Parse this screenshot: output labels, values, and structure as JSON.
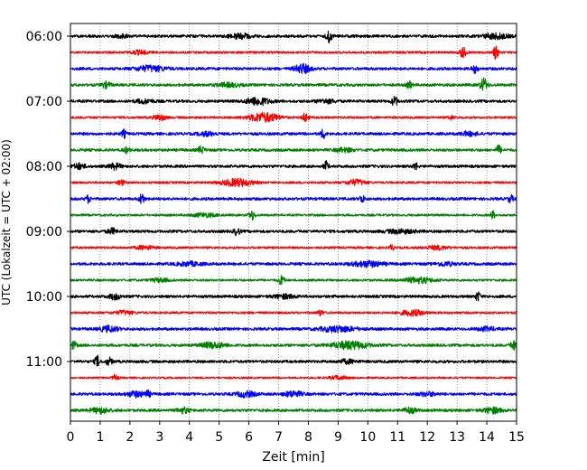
{
  "chart_data": {
    "type": "line",
    "title": "",
    "xlabel": "Zeit  [min]",
    "ylabel": "UTC (Lokalzeit = UTC + 02:00)",
    "xlim": [
      0,
      15
    ],
    "x_ticks": [
      "0",
      "1",
      "2",
      "3",
      "4",
      "5",
      "6",
      "7",
      "8",
      "9",
      "10",
      "11",
      "12",
      "13",
      "14",
      "15"
    ],
    "y_ticks": [
      "06:00",
      "07:00",
      "08:00",
      "09:00",
      "10:00",
      "11:00"
    ],
    "grid": "vertical dotted lines at each minute",
    "trace_interval_min": 15,
    "trace_colors": [
      "#000000",
      "#ff0000",
      "#0000ff",
      "#008000"
    ],
    "traces": [
      {
        "start": "06:00",
        "color": "#000000",
        "base_amp": 1.5,
        "events": [
          [
            5.7,
            3,
            0.35
          ],
          [
            8.7,
            6,
            0.1
          ],
          [
            1.7,
            2,
            0.2
          ],
          [
            14.3,
            3,
            0.4
          ]
        ]
      },
      {
        "start": "06:15",
        "color": "#ff0000",
        "base_amp": 1.2,
        "events": [
          [
            13.2,
            6,
            0.1
          ],
          [
            14.3,
            7,
            0.08
          ],
          [
            2.3,
            2,
            0.3
          ]
        ]
      },
      {
        "start": "06:30",
        "color": "#0000ff",
        "base_amp": 1.5,
        "events": [
          [
            2.7,
            3,
            0.5
          ],
          [
            7.8,
            5,
            0.25
          ],
          [
            13.6,
            4,
            0.1
          ]
        ]
      },
      {
        "start": "06:45",
        "color": "#008000",
        "base_amp": 1.5,
        "events": [
          [
            1.2,
            3,
            0.15
          ],
          [
            11.4,
            4,
            0.08
          ],
          [
            13.9,
            7,
            0.12
          ],
          [
            5.3,
            2,
            0.4
          ]
        ]
      },
      {
        "start": "07:00",
        "color": "#000000",
        "base_amp": 1.5,
        "events": [
          [
            6.3,
            4,
            0.4
          ],
          [
            10.9,
            5,
            0.1
          ],
          [
            8.6,
            2,
            0.3
          ],
          [
            2.5,
            2,
            0.3
          ]
        ]
      },
      {
        "start": "07:15",
        "color": "#ff0000",
        "base_amp": 1.2,
        "events": [
          [
            6.5,
            5,
            0.5
          ],
          [
            7.9,
            5,
            0.1
          ],
          [
            3.0,
            3,
            0.2
          ],
          [
            12.8,
            2,
            0.1
          ]
        ]
      },
      {
        "start": "07:30",
        "color": "#0000ff",
        "base_amp": 1.5,
        "events": [
          [
            1.8,
            4,
            0.08
          ],
          [
            8.5,
            5,
            0.08
          ],
          [
            4.6,
            2,
            0.3
          ],
          [
            13.4,
            2,
            0.3
          ]
        ]
      },
      {
        "start": "07:45",
        "color": "#008000",
        "base_amp": 1.5,
        "events": [
          [
            1.9,
            3,
            0.1
          ],
          [
            4.4,
            4,
            0.1
          ],
          [
            14.4,
            5,
            0.08
          ],
          [
            9.2,
            2,
            0.3
          ]
        ]
      },
      {
        "start": "08:00",
        "color": "#000000",
        "base_amp": 1.5,
        "events": [
          [
            0.3,
            3,
            0.2
          ],
          [
            1.5,
            3,
            0.2
          ],
          [
            8.6,
            5,
            0.08
          ],
          [
            11.6,
            4,
            0.08
          ]
        ]
      },
      {
        "start": "08:15",
        "color": "#ff0000",
        "base_amp": 1.2,
        "events": [
          [
            5.6,
            4,
            0.5
          ],
          [
            9.6,
            3,
            0.3
          ],
          [
            1.7,
            3,
            0.1
          ]
        ]
      },
      {
        "start": "08:30",
        "color": "#0000ff",
        "base_amp": 1.5,
        "events": [
          [
            0.6,
            4,
            0.08
          ],
          [
            2.4,
            6,
            0.08
          ],
          [
            9.8,
            4,
            0.08
          ],
          [
            14.8,
            4,
            0.08
          ]
        ]
      },
      {
        "start": "08:45",
        "color": "#008000",
        "base_amp": 1.2,
        "events": [
          [
            6.1,
            5,
            0.1
          ],
          [
            14.2,
            4,
            0.08
          ],
          [
            4.5,
            2,
            0.4
          ]
        ]
      },
      {
        "start": "09:00",
        "color": "#000000",
        "base_amp": 1.5,
        "events": [
          [
            5.6,
            4,
            0.1
          ],
          [
            1.4,
            3,
            0.15
          ],
          [
            11.1,
            2,
            0.5
          ]
        ]
      },
      {
        "start": "09:15",
        "color": "#ff0000",
        "base_amp": 1.2,
        "events": [
          [
            10.8,
            3,
            0.08
          ],
          [
            12.3,
            2,
            0.4
          ],
          [
            2.5,
            2,
            0.3
          ]
        ]
      },
      {
        "start": "09:30",
        "color": "#0000ff",
        "base_amp": 1.5,
        "events": [
          [
            10.0,
            3,
            0.5
          ],
          [
            4.0,
            2,
            0.4
          ],
          [
            12.6,
            2,
            0.3
          ]
        ]
      },
      {
        "start": "09:45",
        "color": "#008000",
        "base_amp": 1.2,
        "events": [
          [
            7.1,
            5,
            0.1
          ],
          [
            11.7,
            3,
            0.5
          ],
          [
            3.0,
            2,
            0.3
          ]
        ]
      },
      {
        "start": "10:00",
        "color": "#000000",
        "base_amp": 1.5,
        "events": [
          [
            13.7,
            5,
            0.08
          ],
          [
            1.5,
            3,
            0.2
          ],
          [
            7.2,
            2,
            0.4
          ]
        ]
      },
      {
        "start": "10:15",
        "color": "#ff0000",
        "base_amp": 1.2,
        "events": [
          [
            11.5,
            3,
            0.4
          ],
          [
            8.4,
            3,
            0.1
          ],
          [
            1.8,
            2,
            0.3
          ]
        ]
      },
      {
        "start": "10:30",
        "color": "#0000ff",
        "base_amp": 1.5,
        "events": [
          [
            1.3,
            3,
            0.3
          ],
          [
            9.0,
            3,
            0.6
          ],
          [
            14.0,
            2,
            0.3
          ]
        ]
      },
      {
        "start": "10:45",
        "color": "#008000",
        "base_amp": 1.5,
        "events": [
          [
            9.4,
            4,
            0.6
          ],
          [
            14.9,
            5,
            0.1
          ],
          [
            4.8,
            3,
            0.4
          ],
          [
            0.1,
            4,
            0.1
          ]
        ]
      },
      {
        "start": "11:00",
        "color": "#000000",
        "base_amp": 1.5,
        "events": [
          [
            0.9,
            6,
            0.08
          ],
          [
            1.3,
            4,
            0.1
          ],
          [
            9.3,
            2,
            0.3
          ]
        ]
      },
      {
        "start": "11:15",
        "color": "#ff0000",
        "base_amp": 1.0,
        "events": [
          [
            1.5,
            3,
            0.1
          ],
          [
            9.0,
            2,
            0.3
          ]
        ]
      },
      {
        "start": "11:30",
        "color": "#0000ff",
        "base_amp": 1.5,
        "events": [
          [
            2.2,
            3,
            0.3
          ],
          [
            2.6,
            3,
            0.1
          ],
          [
            5.9,
            3,
            0.3
          ],
          [
            7.5,
            3,
            0.3
          ],
          [
            12.0,
            2,
            0.3
          ]
        ]
      },
      {
        "start": "11:45",
        "color": "#008000",
        "base_amp": 1.5,
        "events": [
          [
            1.0,
            3,
            0.3
          ],
          [
            3.8,
            3,
            0.2
          ],
          [
            11.4,
            3,
            0.2
          ],
          [
            14.2,
            3,
            0.3
          ]
        ]
      }
    ]
  }
}
